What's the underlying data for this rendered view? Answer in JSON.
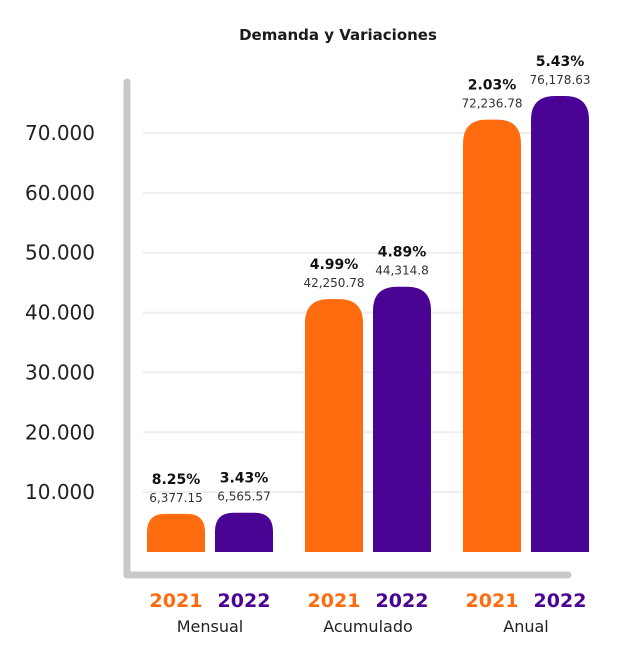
{
  "chart_data": {
    "type": "bar",
    "title": "Demanda y Variaciones",
    "xlabel": "",
    "ylabel": "",
    "ylim": [
      0,
      75000
    ],
    "yticks": [
      "10.000",
      "20.000",
      "30.000",
      "40.000",
      "50.000",
      "60.000",
      "70.000"
    ],
    "ytick_values": [
      10000,
      20000,
      30000,
      40000,
      50000,
      60000,
      70000
    ],
    "grid": true,
    "categories": [
      "Mensual",
      "Acumulado",
      "Anual"
    ],
    "series": [
      {
        "name": "2021",
        "color": "#FF6B0F",
        "values": [
          6377.15,
          42250.78,
          72236.78
        ],
        "value_labels": [
          "6,377.15",
          "42,250.78",
          "72,236.78"
        ],
        "pct_labels": [
          "8.25%",
          "4.99%",
          "2.03%"
        ]
      },
      {
        "name": "2022",
        "color": "#4A0494",
        "values": [
          6565.57,
          44314.8,
          76178.63
        ],
        "value_labels": [
          "6,565.57",
          "44,314.8",
          "76,178.63"
        ],
        "pct_labels": [
          "3.43%",
          "4.89%",
          "5.43%"
        ]
      }
    ]
  }
}
